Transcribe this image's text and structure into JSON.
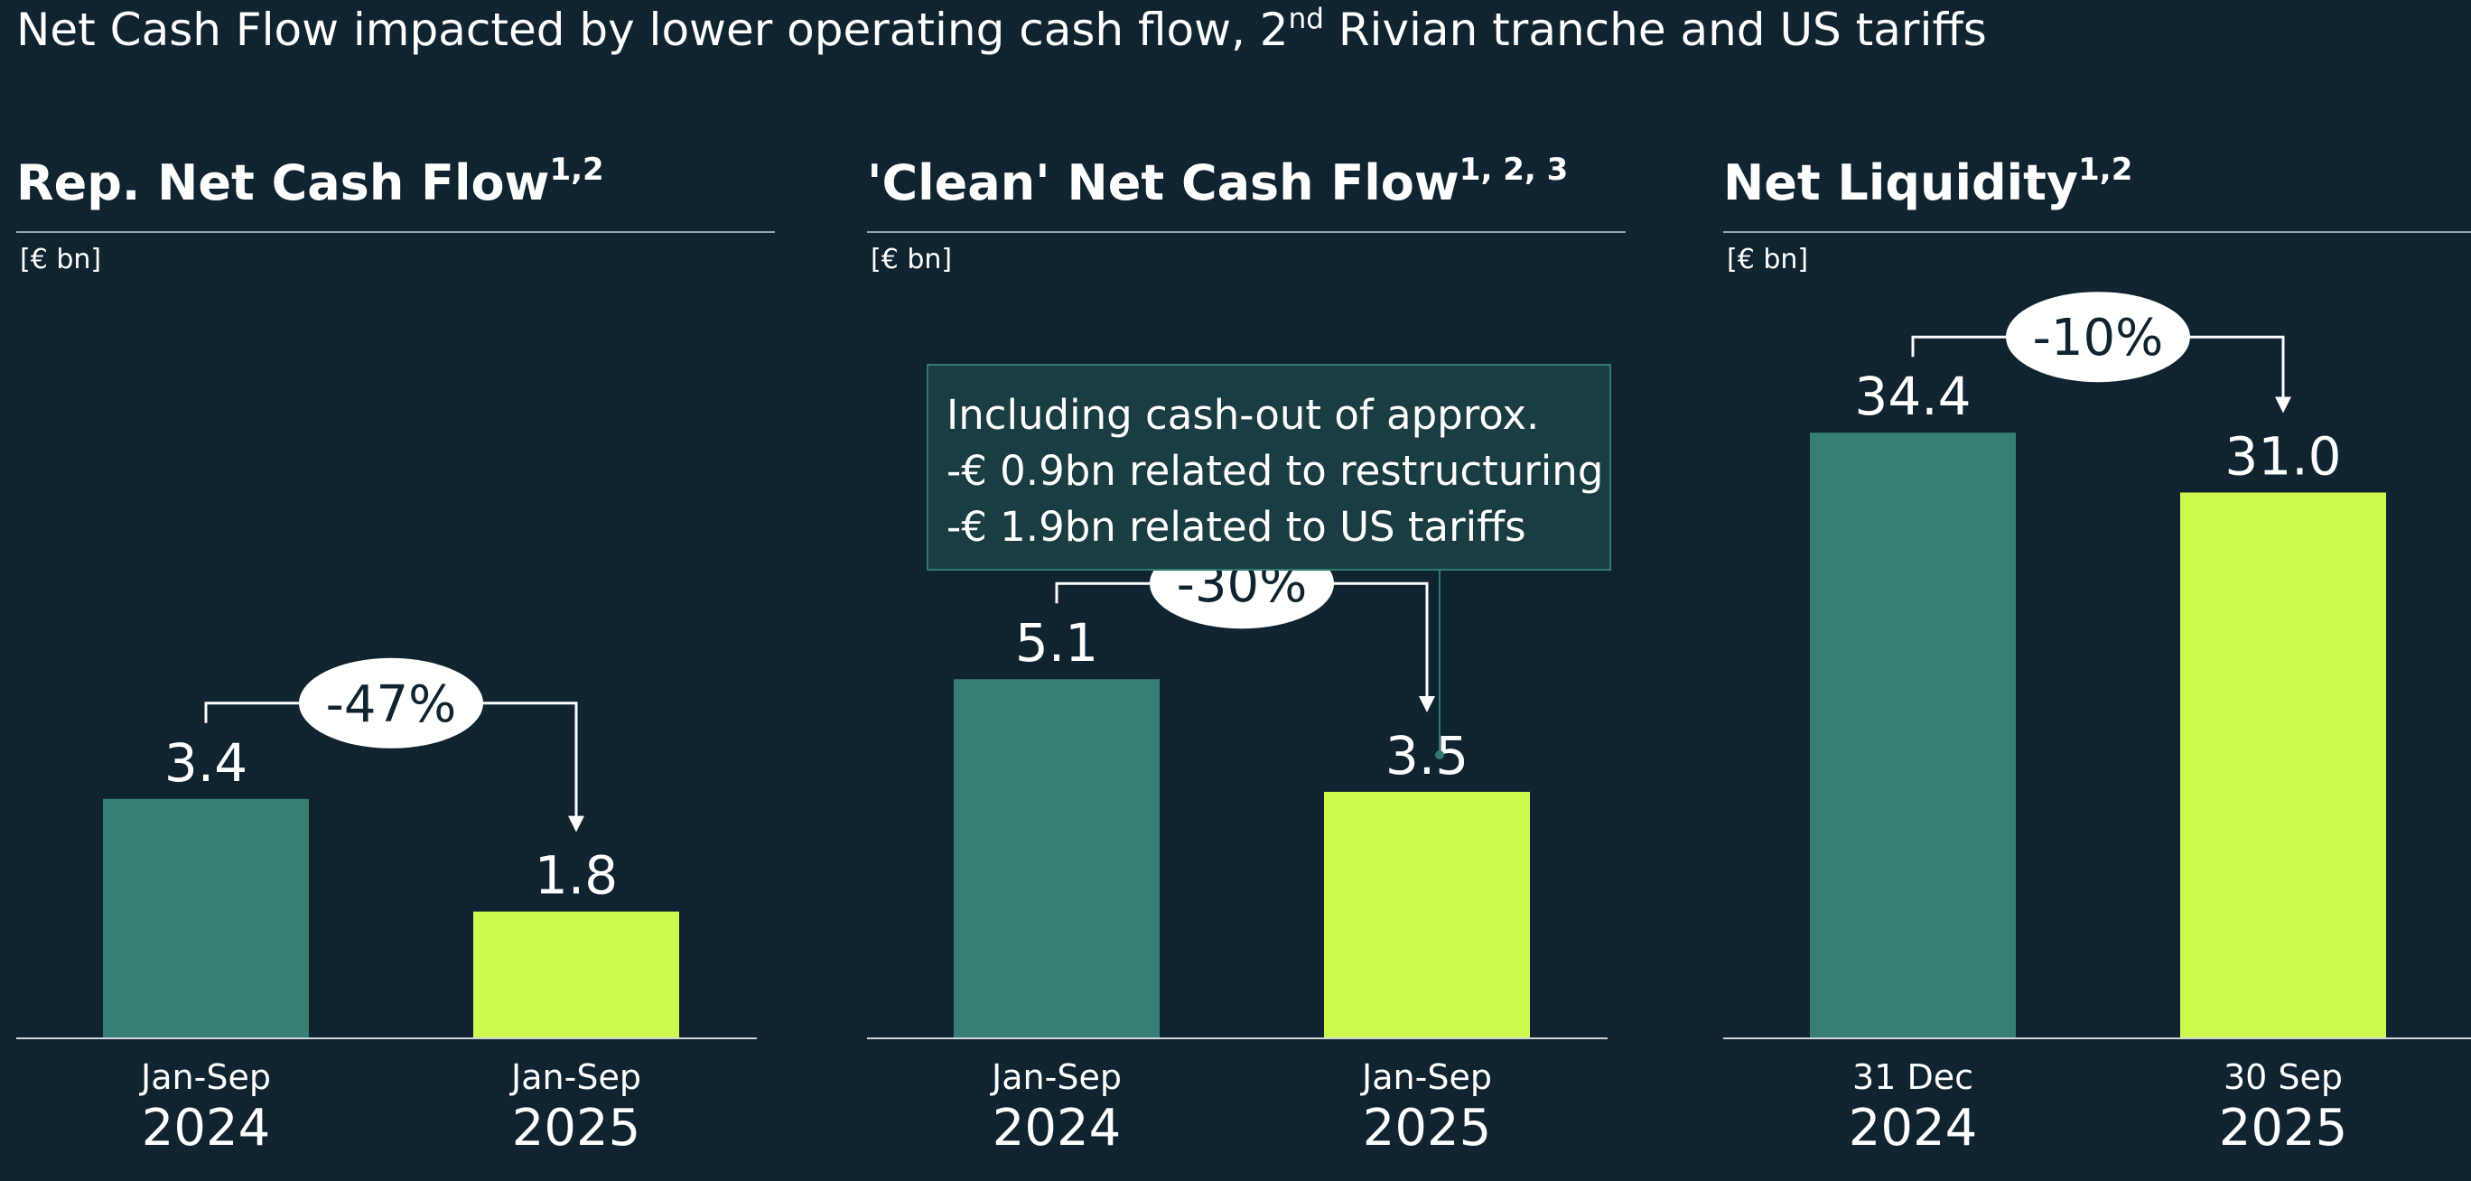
{
  "headline": {
    "before": "Net Cash Flow impacted by lower operating cash flow, 2",
    "sup": "nd",
    "after": " Rivian tranche and US tariffs"
  },
  "colors": {
    "background": "#0f2330",
    "prior": "#367f72",
    "current": "#cefa4f",
    "axis": "#cfd6da",
    "note_border": "#2f7c6e",
    "note_fill": "#1a3c43"
  },
  "chart_data": [
    {
      "type": "bar",
      "title": "Rep. Net Cash Flow",
      "title_sup": "1,2",
      "unit": "[€ bn]",
      "categories": [
        {
          "period": "Jan-Sep",
          "year": "2024"
        },
        {
          "period": "Jan-Sep",
          "year": "2025"
        }
      ],
      "values": [
        3.4,
        1.8
      ],
      "labels": [
        "3.4",
        "1.8"
      ],
      "change_label": "-47%",
      "ylim": [
        0,
        10
      ]
    },
    {
      "type": "bar",
      "title": "'Clean' Net Cash Flow",
      "title_sup": "1, 2, 3",
      "unit": "[€ bn]",
      "categories": [
        {
          "period": "Jan-Sep",
          "year": "2024"
        },
        {
          "period": "Jan-Sep",
          "year": "2025"
        }
      ],
      "values": [
        5.1,
        3.5
      ],
      "labels": [
        "5.1",
        "3.5"
      ],
      "change_label": "-30%",
      "ylim": [
        0,
        10
      ]
    },
    {
      "type": "bar",
      "title": "Net Liquidity",
      "title_sup": "1,2",
      "unit": "[€ bn]",
      "categories": [
        {
          "period": "31 Dec",
          "year": "2024"
        },
        {
          "period": "30 Sep",
          "year": "2025"
        }
      ],
      "values": [
        34.4,
        31.0
      ],
      "labels": [
        "34.4",
        "31.0"
      ],
      "change_label": "-10%",
      "ylim": [
        0,
        40
      ]
    }
  ],
  "note": {
    "lines": [
      "Including cash-out of approx.",
      "-€ 0.9bn related to restructuring",
      "-€ 1.9bn related to US tariffs"
    ]
  }
}
